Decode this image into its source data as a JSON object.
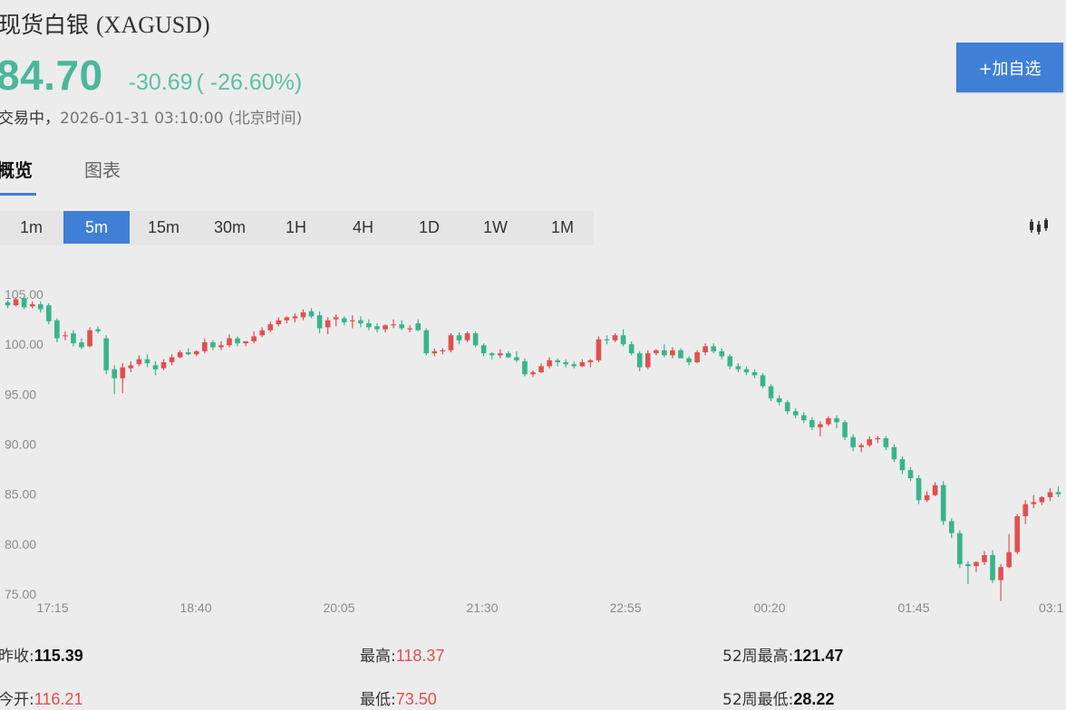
{
  "header": {
    "name": "现货白银",
    "symbol": "(XAGUSD)",
    "price": "84.70",
    "change": "-30.69",
    "change_pct": "( -26.60%)",
    "status": "交易中，",
    "datetime": "2026-01-31 03:10:00 (北京时间)",
    "watch_button": "+加自选"
  },
  "tabs": [
    {
      "label": "概览",
      "active": true
    },
    {
      "label": "图表",
      "active": false
    }
  ],
  "intervals": [
    {
      "label": "1m",
      "active": false
    },
    {
      "label": "5m",
      "active": true
    },
    {
      "label": "15m",
      "active": false
    },
    {
      "label": "30m",
      "active": false
    },
    {
      "label": "1H",
      "active": false
    },
    {
      "label": "4H",
      "active": false
    },
    {
      "label": "1D",
      "active": false
    },
    {
      "label": "1W",
      "active": false
    },
    {
      "label": "1M",
      "active": false
    }
  ],
  "icons": {
    "chart_type": "candlestick-icon"
  },
  "colors": {
    "up": "#e0504f",
    "down": "#37b48c",
    "accent": "#3f7fd6",
    "price": "#4bb79a"
  },
  "chart_data": {
    "type": "candlestick",
    "x_tick_labels": [
      "17:15",
      "18:40",
      "20:05",
      "21:30",
      "22:55",
      "00:20",
      "01:45",
      "03:1"
    ],
    "y_tick_labels": [
      "105.00",
      "100.00",
      "95.00",
      "90.00",
      "85.00",
      "80.00",
      "75.00"
    ],
    "ylim": [
      75,
      105
    ],
    "grid": false,
    "candles": [
      [
        104.2,
        104.4,
        103.6,
        103.9
      ],
      [
        103.9,
        104.7,
        103.8,
        104.5
      ],
      [
        104.6,
        104.7,
        103.5,
        103.7
      ],
      [
        103.8,
        104.3,
        103.6,
        104.0
      ],
      [
        104.0,
        104.3,
        103.2,
        103.5
      ],
      [
        103.9,
        104.1,
        102.0,
        102.3
      ],
      [
        102.4,
        102.6,
        100.2,
        100.6
      ],
      [
        100.8,
        101.3,
        100.4,
        100.9
      ],
      [
        101.1,
        101.4,
        99.8,
        100.1
      ],
      [
        100.2,
        100.6,
        99.5,
        99.7
      ],
      [
        99.8,
        101.7,
        99.7,
        101.4
      ],
      [
        101.5,
        101.8,
        101.1,
        101.3
      ],
      [
        100.6,
        100.9,
        97.0,
        97.4
      ],
      [
        97.5,
        97.9,
        95.0,
        96.6
      ],
      [
        96.6,
        98.1,
        95.1,
        97.7
      ],
      [
        97.6,
        98.3,
        97.2,
        97.9
      ],
      [
        98.0,
        98.9,
        97.8,
        98.5
      ],
      [
        98.5,
        99.0,
        97.7,
        98.1
      ],
      [
        97.9,
        98.3,
        96.9,
        97.5
      ],
      [
        97.6,
        98.5,
        97.4,
        98.2
      ],
      [
        98.2,
        99.0,
        97.9,
        98.7
      ],
      [
        98.7,
        99.4,
        98.6,
        99.2
      ],
      [
        99.2,
        99.6,
        98.9,
        99.0
      ],
      [
        99.0,
        99.4,
        98.8,
        99.3
      ],
      [
        99.3,
        100.6,
        99.1,
        100.2
      ],
      [
        100.2,
        100.4,
        99.4,
        99.7
      ],
      [
        99.7,
        100.3,
        99.4,
        99.9
      ],
      [
        99.9,
        101.0,
        99.7,
        100.6
      ],
      [
        100.6,
        100.8,
        99.8,
        100.1
      ],
      [
        100.1,
        100.3,
        99.8,
        100.3
      ],
      [
        100.3,
        101.3,
        100.1,
        100.8
      ],
      [
        100.9,
        101.7,
        100.7,
        101.4
      ],
      [
        101.4,
        102.3,
        101.2,
        102.0
      ],
      [
        102.0,
        102.7,
        101.8,
        102.4
      ],
      [
        102.4,
        102.8,
        102.1,
        102.7
      ],
      [
        102.6,
        103.1,
        102.2,
        102.8
      ],
      [
        102.7,
        103.5,
        102.4,
        103.2
      ],
      [
        103.3,
        103.6,
        102.6,
        102.8
      ],
      [
        102.9,
        103.3,
        101.1,
        101.6
      ],
      [
        101.7,
        102.7,
        101.0,
        102.4
      ],
      [
        102.5,
        103.0,
        101.8,
        102.7
      ],
      [
        102.6,
        102.8,
        101.9,
        102.2
      ],
      [
        102.3,
        102.9,
        101.6,
        102.4
      ],
      [
        102.4,
        102.8,
        101.7,
        102.1
      ],
      [
        102.1,
        102.5,
        101.4,
        101.7
      ],
      [
        101.8,
        102.1,
        101.2,
        101.5
      ],
      [
        101.5,
        102.0,
        101.2,
        101.9
      ],
      [
        101.9,
        102.5,
        101.6,
        102.0
      ],
      [
        102.0,
        102.4,
        101.4,
        101.6
      ],
      [
        101.6,
        101.9,
        101.2,
        101.6
      ],
      [
        102.1,
        102.5,
        101.3,
        101.4
      ],
      [
        101.4,
        101.6,
        98.9,
        99.1
      ],
      [
        99.1,
        99.6,
        98.8,
        99.3
      ],
      [
        99.3,
        99.6,
        99.0,
        99.4
      ],
      [
        99.4,
        101.1,
        99.2,
        100.9
      ],
      [
        100.9,
        101.2,
        100.0,
        100.4
      ],
      [
        100.4,
        101.3,
        100.2,
        101.1
      ],
      [
        101.1,
        101.3,
        99.7,
        99.9
      ],
      [
        99.9,
        100.1,
        98.8,
        99.1
      ],
      [
        99.1,
        99.2,
        98.5,
        98.9
      ],
      [
        98.9,
        99.5,
        98.6,
        99.1
      ],
      [
        99.1,
        99.3,
        98.6,
        98.7
      ],
      [
        98.7,
        99.3,
        98.2,
        98.4
      ],
      [
        98.3,
        98.6,
        96.8,
        97.0
      ],
      [
        97.0,
        97.4,
        96.7,
        97.2
      ],
      [
        97.2,
        98.1,
        97.1,
        97.8
      ],
      [
        97.8,
        98.7,
        97.6,
        98.4
      ],
      [
        98.4,
        98.6,
        97.8,
        98.2
      ],
      [
        98.2,
        98.5,
        97.7,
        98.0
      ],
      [
        98.0,
        98.3,
        97.6,
        97.8
      ],
      [
        97.8,
        98.5,
        97.7,
        98.2
      ],
      [
        98.2,
        98.5,
        97.7,
        98.4
      ],
      [
        98.4,
        100.8,
        98.2,
        100.5
      ],
      [
        100.5,
        100.9,
        100.0,
        100.4
      ],
      [
        100.4,
        101.1,
        100.2,
        100.9
      ],
      [
        100.9,
        101.5,
        99.8,
        100.0
      ],
      [
        100.0,
        100.3,
        98.9,
        99.1
      ],
      [
        99.1,
        99.3,
        97.3,
        97.7
      ],
      [
        97.7,
        99.4,
        97.5,
        99.1
      ],
      [
        99.1,
        99.5,
        98.9,
        99.4
      ],
      [
        99.4,
        100.0,
        98.7,
        98.9
      ],
      [
        98.9,
        99.7,
        98.6,
        99.4
      ],
      [
        99.4,
        99.6,
        98.7,
        98.6
      ],
      [
        98.6,
        98.8,
        97.9,
        98.2
      ],
      [
        98.2,
        99.4,
        98.1,
        99.2
      ],
      [
        99.2,
        100.1,
        98.9,
        99.8
      ],
      [
        99.8,
        100.1,
        99.1,
        99.3
      ],
      [
        99.3,
        99.6,
        98.5,
        98.8
      ],
      [
        98.8,
        99.0,
        97.5,
        97.8
      ],
      [
        97.8,
        98.1,
        97.2,
        97.5
      ],
      [
        97.5,
        97.8,
        96.9,
        97.2
      ],
      [
        97.2,
        97.5,
        96.6,
        96.9
      ],
      [
        96.9,
        97.1,
        95.6,
        95.8
      ],
      [
        95.8,
        96.0,
        94.3,
        94.6
      ],
      [
        94.6,
        94.9,
        93.9,
        94.2
      ],
      [
        94.2,
        94.4,
        93.0,
        93.3
      ],
      [
        93.3,
        93.6,
        92.6,
        92.9
      ],
      [
        92.9,
        93.2,
        92.1,
        92.4
      ],
      [
        92.4,
        92.7,
        91.4,
        91.7
      ],
      [
        91.7,
        92.3,
        90.8,
        92.0
      ],
      [
        92.0,
        92.8,
        91.8,
        92.6
      ],
      [
        92.6,
        92.9,
        91.6,
        92.2
      ],
      [
        92.2,
        92.4,
        90.4,
        90.7
      ],
      [
        90.7,
        91.0,
        89.3,
        89.7
      ],
      [
        89.7,
        90.1,
        89.2,
        89.9
      ],
      [
        89.9,
        90.8,
        89.7,
        90.5
      ],
      [
        90.5,
        90.8,
        90.1,
        90.6
      ],
      [
        90.6,
        90.8,
        89.4,
        89.7
      ],
      [
        89.7,
        90.0,
        88.2,
        88.5
      ],
      [
        88.5,
        88.8,
        87.0,
        87.4
      ],
      [
        87.4,
        87.7,
        86.3,
        86.6
      ],
      [
        86.6,
        86.9,
        84.0,
        84.4
      ],
      [
        84.4,
        85.3,
        84.2,
        84.9
      ],
      [
        84.9,
        86.2,
        84.8,
        85.9
      ],
      [
        85.9,
        86.3,
        81.9,
        82.3
      ],
      [
        82.3,
        82.6,
        80.6,
        81.1
      ],
      [
        81.1,
        81.4,
        77.6,
        78.0
      ],
      [
        78.0,
        78.3,
        76.0,
        77.8
      ],
      [
        77.8,
        78.3,
        77.2,
        78.2
      ],
      [
        78.2,
        79.3,
        77.9,
        78.9
      ],
      [
        78.9,
        79.4,
        76.1,
        76.4
      ],
      [
        76.4,
        78.0,
        74.3,
        77.7
      ],
      [
        77.7,
        81.0,
        77.6,
        79.2
      ],
      [
        79.2,
        83.0,
        79.0,
        82.8
      ],
      [
        82.8,
        84.4,
        82.0,
        84.0
      ],
      [
        84.0,
        84.9,
        83.6,
        84.2
      ],
      [
        84.2,
        84.8,
        83.9,
        84.7
      ],
      [
        84.7,
        85.6,
        84.3,
        85.2
      ],
      [
        85.2,
        85.8,
        84.7,
        85.0
      ]
    ]
  },
  "stats": {
    "prev_close_label": "昨收:",
    "prev_close": "115.39",
    "high_label": "最高:",
    "high": "118.37",
    "high52_label": "52周最高:",
    "high52": "121.47",
    "open_label": "今开:",
    "open": "116.21",
    "low_label": "最低:",
    "low": "73.50",
    "low52_label": "52周最低:",
    "low52": "28.22"
  }
}
